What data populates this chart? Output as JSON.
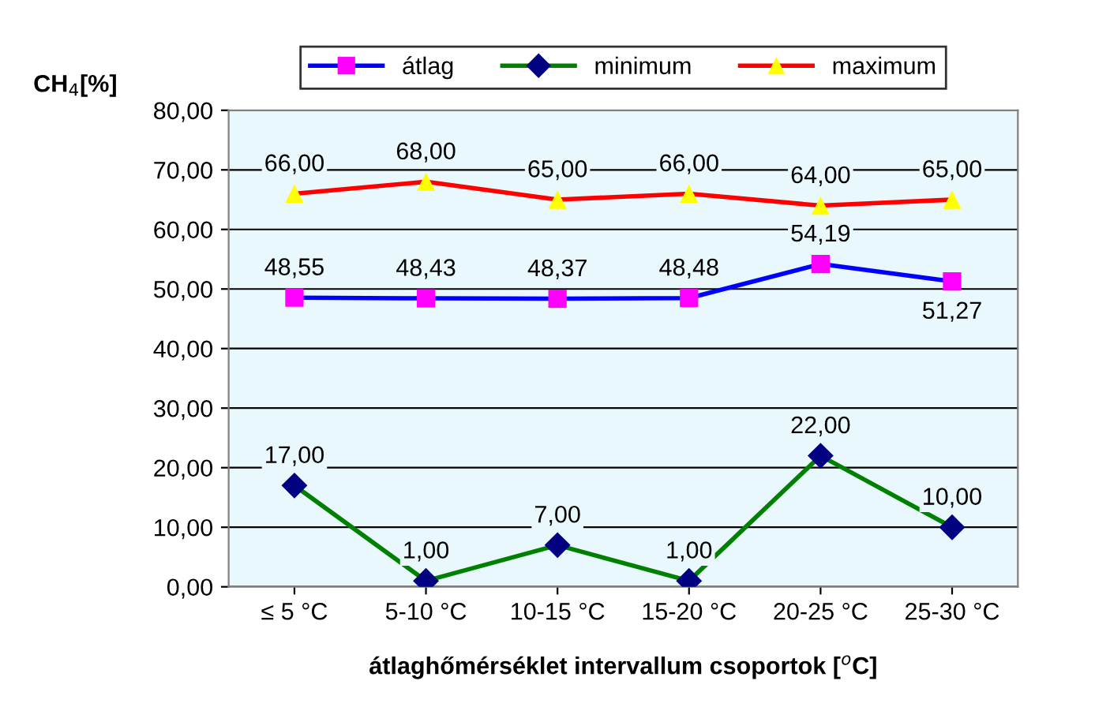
{
  "chart_data": {
    "type": "line",
    "xlabel": "átlaghőmérséklet intervallum csoportok [$^{o}$C]",
    "ylabel": "CH$_{4}$[%]",
    "categories": [
      "≤ 5 °C",
      "5-10 °C",
      "10-15 °C",
      "15-20 °C",
      "20-25 °C",
      "25-30 °C"
    ],
    "series": [
      {
        "name": "átlag",
        "color": "#0000ff",
        "colors": [
          "#ff00ff",
          "#ff00ff",
          "#ff00ff",
          "#ff00ff",
          "#ff00ff",
          "#ff00ff"
        ],
        "marker": "square",
        "values": [
          48.55,
          48.43,
          48.37,
          48.48,
          54.19,
          51.27
        ],
        "value_labels": [
          "48,55",
          "48,43",
          "48,37",
          "48,48",
          "54,19",
          "51,27"
        ]
      },
      {
        "name": "minimum",
        "color": "#008000",
        "colors": [
          "#000080",
          "#000080",
          "#000080",
          "#000080",
          "#000080",
          "#000080"
        ],
        "marker": "diamond",
        "values": [
          17,
          1,
          7,
          1,
          22,
          10
        ],
        "value_labels": [
          "17,00",
          "1,00",
          "7,00",
          "1,00",
          "22,00",
          "10,00"
        ]
      },
      {
        "name": "maximum",
        "color": "#ff0000",
        "colors": [
          "#ffff00",
          "#ffff00",
          "#ffff00",
          "#ffff00",
          "#ffff00",
          "#ffff00"
        ],
        "marker": "triangle",
        "values": [
          66,
          68,
          65,
          66,
          64,
          65
        ],
        "value_labels": [
          "66,00",
          "68,00",
          "65,00",
          "66,00",
          "64,00",
          "65,00"
        ]
      }
    ],
    "ylim": [
      0,
      80
    ],
    "yticks": [
      {
        "value": 0,
        "label": "0,00"
      },
      {
        "value": 10,
        "label": "10,00"
      },
      {
        "value": 20,
        "label": "20,00"
      },
      {
        "value": 30,
        "label": "30,00"
      },
      {
        "value": 40,
        "label": "40,00"
      },
      {
        "value": 50,
        "label": "50,00"
      },
      {
        "value": 60,
        "label": "60,00"
      },
      {
        "value": 70,
        "label": "70,00"
      },
      {
        "value": 80,
        "label": "80,00"
      }
    ],
    "grid": "y",
    "legend": "top"
  }
}
